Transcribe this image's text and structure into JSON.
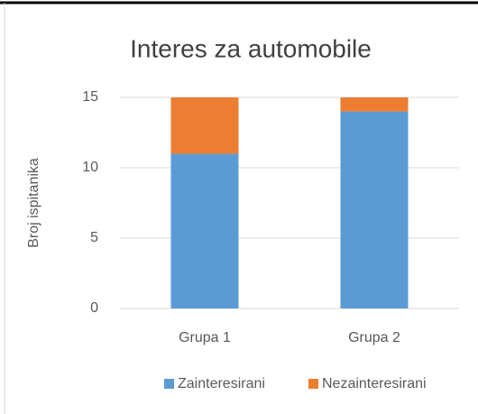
{
  "chart_data": {
    "type": "stacked_bar",
    "title": "Interes za automobile",
    "y_label": "Broj ispitanika",
    "categories": [
      "Grupa 1",
      "Grupa 2"
    ],
    "series": [
      {
        "name": "Zainteresirani",
        "color": "#5b9bd5",
        "values": [
          11,
          14
        ]
      },
      {
        "name": "Nezainteresirani",
        "color": "#ed7d31",
        "values": [
          4,
          1
        ]
      }
    ],
    "ylim": [
      0,
      15
    ],
    "yticks": [
      0,
      5,
      10,
      15
    ],
    "grid": true,
    "legend": "bottom"
  }
}
